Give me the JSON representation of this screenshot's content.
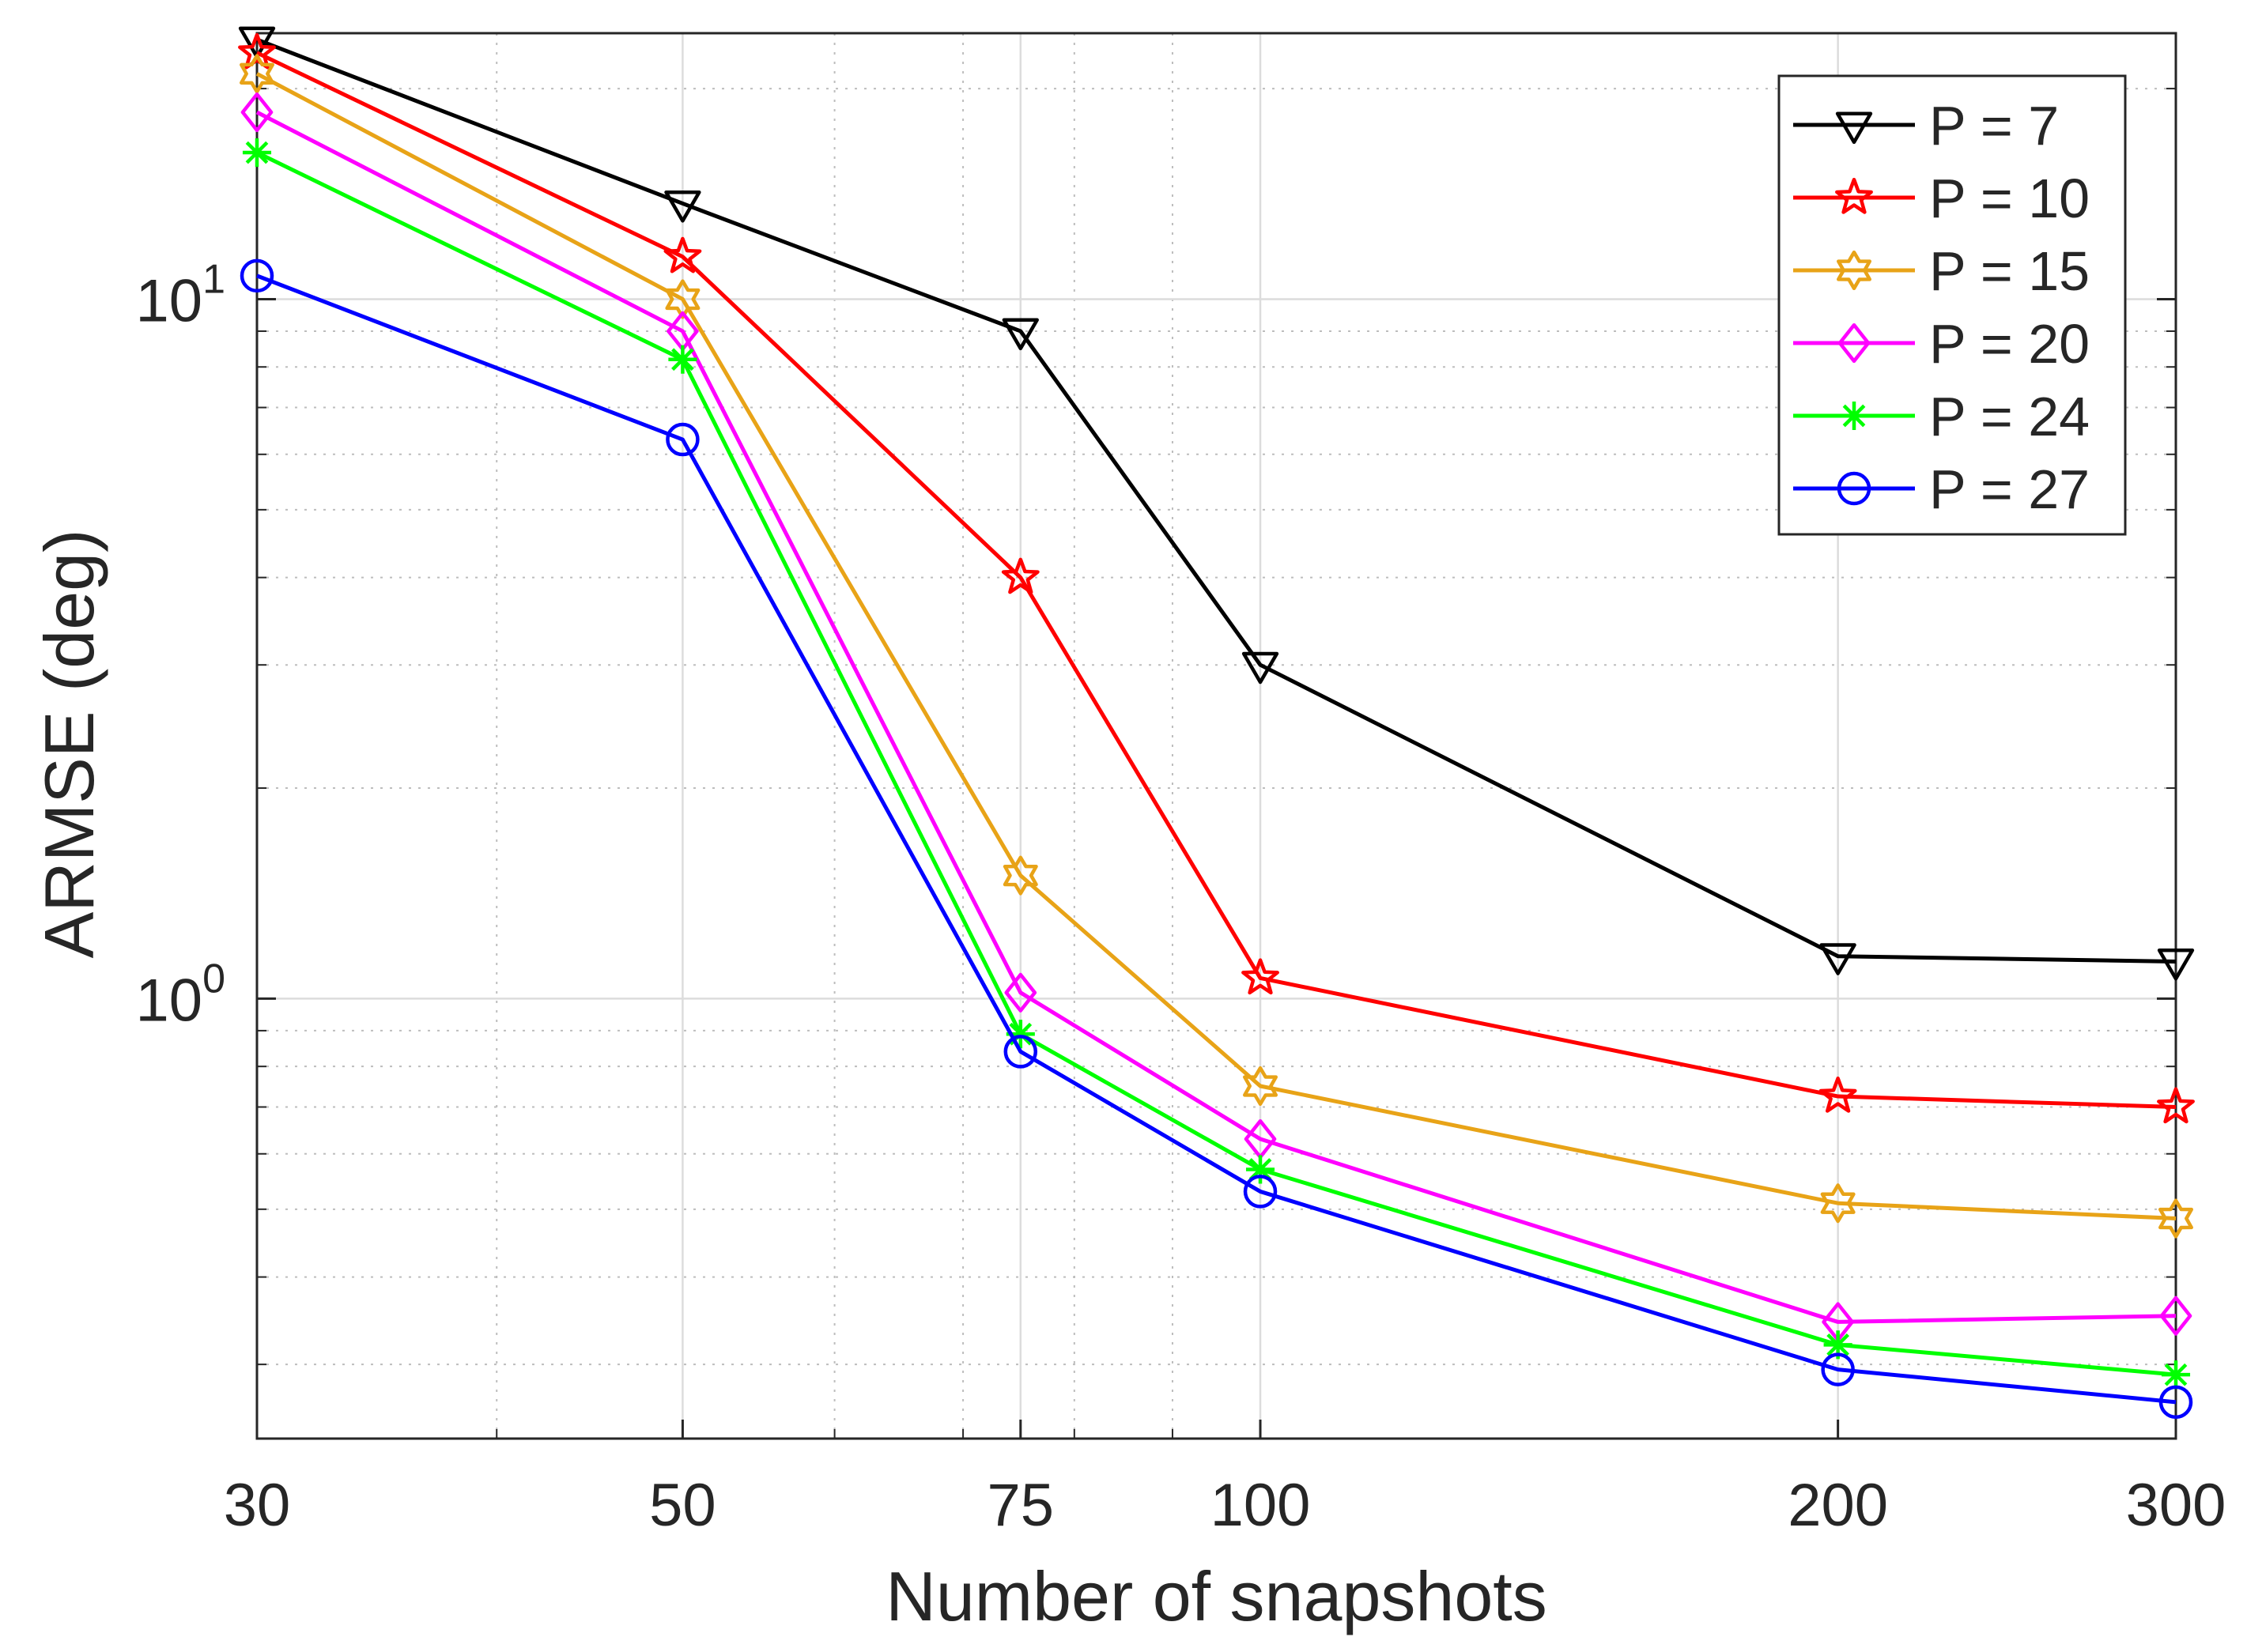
{
  "chart_data": {
    "type": "line",
    "title": "",
    "xlabel": "Number of snapshots",
    "ylabel": "ARMSE (deg)",
    "xscale": "log",
    "yscale": "log",
    "x": [
      30,
      50,
      75,
      100,
      200,
      300
    ],
    "xticks": [
      "30",
      "50",
      "75",
      "100",
      "200",
      "300"
    ],
    "yticks": [
      {
        "value": 1,
        "base": "10",
        "exp": "0"
      },
      {
        "value": 10,
        "base": "10",
        "exp": "1"
      }
    ],
    "xlim": [
      30,
      300
    ],
    "ylim": [
      0.235,
      24
    ],
    "grid": true,
    "legend_position": "top-right",
    "series": [
      {
        "name": "P = 7",
        "color": "#000000",
        "marker": "triangle-down",
        "values": [
          23.5,
          13.7,
          9.0,
          3.0,
          1.15,
          1.13
        ]
      },
      {
        "name": "P = 10",
        "color": "#ff0000",
        "marker": "star",
        "values": [
          22.5,
          11.5,
          4.0,
          1.07,
          0.725,
          0.7
        ]
      },
      {
        "name": "P = 15",
        "color": "#e8a317",
        "marker": "hexagram",
        "values": [
          21.0,
          10.0,
          1.5,
          0.75,
          0.51,
          0.485
        ]
      },
      {
        "name": "P = 20",
        "color": "#ff00ff",
        "marker": "diamond",
        "values": [
          18.5,
          9.0,
          1.02,
          0.63,
          0.345,
          0.352
        ]
      },
      {
        "name": "P = 24",
        "color": "#00ff00",
        "marker": "asterisk",
        "values": [
          16.2,
          8.2,
          0.89,
          0.57,
          0.32,
          0.29
        ]
      },
      {
        "name": "P = 27",
        "color": "#0000ff",
        "marker": "circle",
        "values": [
          10.8,
          6.3,
          0.84,
          0.53,
          0.295,
          0.265
        ]
      }
    ]
  }
}
